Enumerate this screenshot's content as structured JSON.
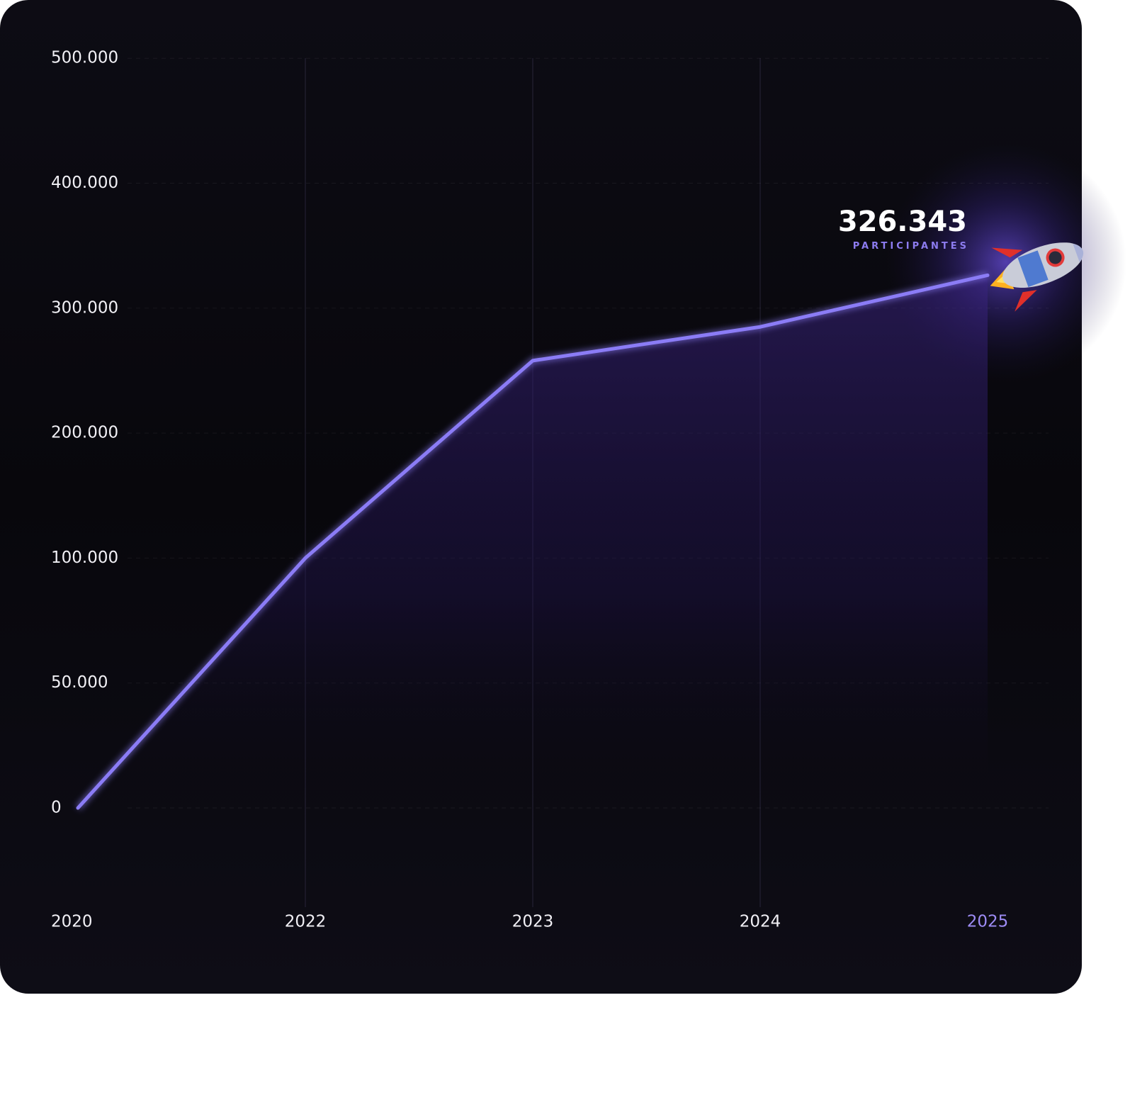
{
  "chart_data": {
    "type": "line",
    "categories": [
      "2020",
      "2022",
      "2023",
      "2024",
      "2025"
    ],
    "series": [
      {
        "name": "Participantes",
        "color": "#8b7cf6",
        "values": [
          0,
          100000,
          258000,
          285000,
          326343
        ],
        "value_labels": [
          null,
          null,
          null,
          null,
          "326.343"
        ]
      }
    ],
    "annotation": "PARTICIPANTES",
    "yticks": [
      0,
      {
        "value": 50000,
        "label": "50.000"
      },
      {
        "value": 100000,
        "label": "100.000"
      },
      {
        "value": 200000,
        "label": "200.000"
      },
      {
        "value": 300000,
        "label": "300.000"
      },
      {
        "value": 400000,
        "label": "400.000"
      },
      {
        "value": 500000,
        "label": "500.000"
      }
    ],
    "ylim": [
      0,
      500000
    ],
    "grid": true
  }
}
